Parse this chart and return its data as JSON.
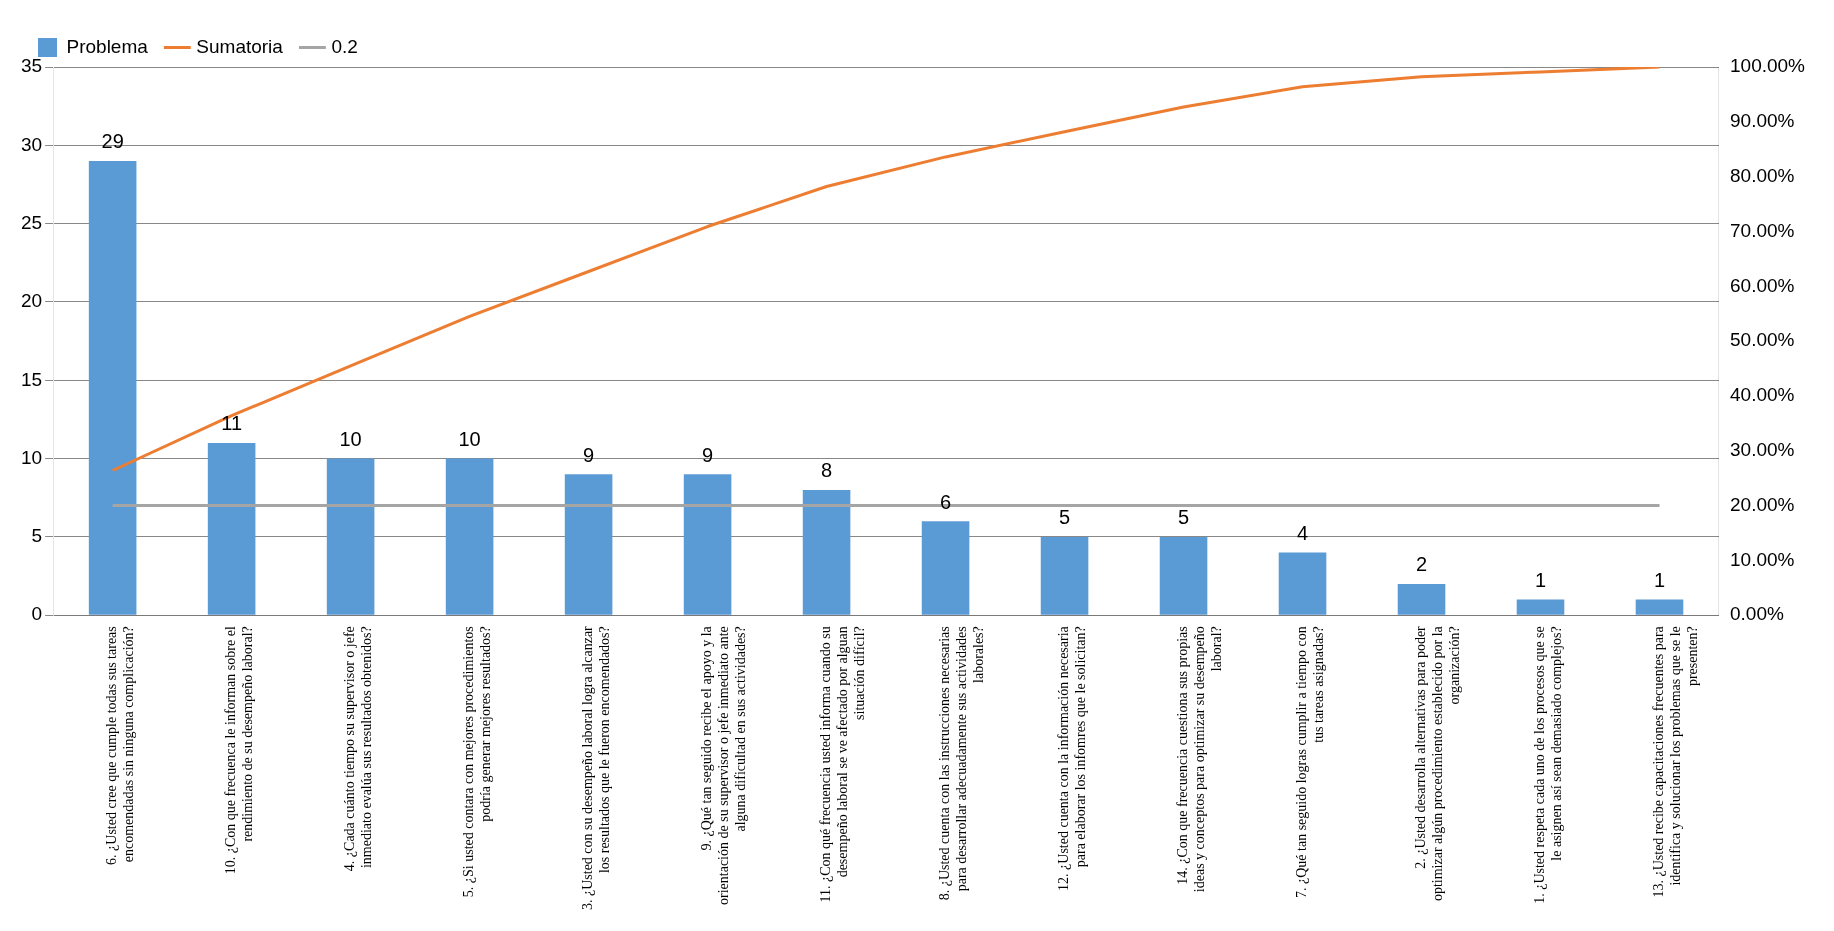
{
  "chart_data": {
    "type": "bar",
    "categories": [
      "6. ¿Usted cree que cumple todas sus tareas encomendadas sin ninguna complicación?",
      "10. ¿Con que frecuenca le informan sobre el rendimiento de su desempeño laboral?",
      "4. ¿Cada cuánto tiempo su supervisor o jefe inmediato evalúa sus resultados obtenidos?",
      "5. ¿Si usted contara con mejores procedimientos podría generar mejores resultados?",
      "3. ¿Usted con su desempeño laboral logra alcanzar los resultados que le fueron encomendados?",
      "9. ¿Qué tan seguido recibe el apoyo y la orientación de su supervisor o jefe inmediato ante alguna dificultad en sus actividades?",
      "11. ¿Con qué frecuencia usted informa cuando su desempeño laboral se ve afectado por alguan situación difícil?",
      "8. ¿Usted cuenta con las instrucciones necesarias para desarrollar adecuadamente sus actividades laborales?",
      "12. ¿Usted cuenta con la información necesaria para elaborar los infomres que le solicitan?",
      "14. ¿Con que frecuencia cuestiona sus propias ideas y conceptos para optimizar su desempeño laboral?",
      "7. ¿Qué tan seguido logras cumplir a tiempo con tus tareas asignadas?",
      "2. ¿Usted desarrolla alternativas para poder optimizar algún procedimiento establecido por la organización?",
      "1. ¿Usted respeta cada uno de los procesos que se le asignen así sean demasiado complejos?",
      "13. ¿Usted recibe capacitaciones frecuentes para identifica y solucionar los problemas que se le presenten?"
    ],
    "series": [
      {
        "name": "Problema",
        "color": "#5b9bd5",
        "values": [
          29,
          11,
          10,
          10,
          9,
          9,
          8,
          6,
          5,
          5,
          4,
          2,
          1,
          1
        ],
        "value_labels": [
          "29",
          "11",
          "10",
          "10",
          "9",
          "9",
          "8",
          "6",
          "5",
          "5",
          "4",
          "2",
          "1",
          "1"
        ]
      },
      {
        "name": "Sumatoria",
        "type": "line",
        "axis": "y2",
        "color": "#ed7d31",
        "values": [
          26.4,
          36.4,
          45.5,
          54.5,
          62.7,
          70.9,
          78.2,
          83.6,
          88.2,
          92.7,
          96.4,
          98.2,
          99.1,
          100
        ]
      },
      {
        "name": "0.2",
        "type": "line",
        "axis": "y2",
        "color": "#a5a5a5",
        "values": [
          20,
          20,
          20,
          20,
          20,
          20,
          20,
          20,
          20,
          20,
          20,
          20,
          20,
          20
        ]
      }
    ],
    "ylim": [
      0,
      35
    ],
    "yticks": [
      0,
      5,
      10,
      15,
      20,
      25,
      30,
      35
    ],
    "y2lim": [
      0,
      100
    ],
    "y2ticks": [
      {
        "value": 0,
        "label": "0.00%"
      },
      {
        "value": 10,
        "label": "10.00%"
      },
      {
        "value": 20,
        "label": "20.00%"
      },
      {
        "value": 30,
        "label": "30.00%"
      },
      {
        "value": 40,
        "label": "40.00%"
      },
      {
        "value": 50,
        "label": "50.00%"
      },
      {
        "value": 60,
        "label": "60.00%"
      },
      {
        "value": 70,
        "label": "70.00%"
      },
      {
        "value": 80,
        "label": "80.00%"
      },
      {
        "value": 90,
        "label": "90.00%"
      },
      {
        "value": 100,
        "label": "100.00%"
      }
    ],
    "grid": "y",
    "legend": "top",
    "marker": "none"
  }
}
